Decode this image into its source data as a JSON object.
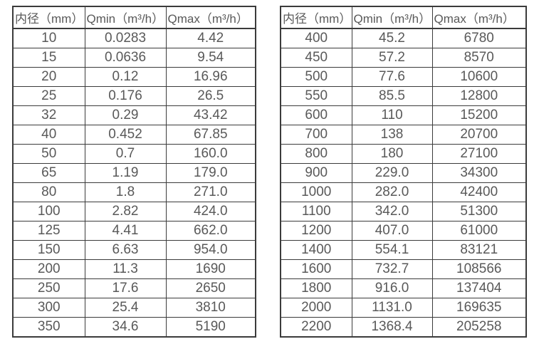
{
  "page": {
    "background": "#ffffff",
    "border_color": "#3b3b3b",
    "text_color": "#595959"
  },
  "tables": [
    {
      "name": "flow-range-table-small-diameters",
      "headers": [
        "内径（mm）",
        "Qmin（m³/h）",
        "Qmax（m³/h）"
      ],
      "rows": [
        [
          "10",
          "0.0283",
          "4.42"
        ],
        [
          "15",
          "0.0636",
          "9.54"
        ],
        [
          "20",
          "0.12",
          "16.96"
        ],
        [
          "25",
          "0.176",
          "26.5"
        ],
        [
          "32",
          "0.29",
          "43.42"
        ],
        [
          "40",
          "0.452",
          "67.85"
        ],
        [
          "50",
          "0.7",
          "160.0"
        ],
        [
          "65",
          "1.19",
          "179.0"
        ],
        [
          "80",
          "1.8",
          "271.0"
        ],
        [
          "100",
          "2.82",
          "424.0"
        ],
        [
          "125",
          "4.41",
          "662.0"
        ],
        [
          "150",
          "6.63",
          "954.0"
        ],
        [
          "200",
          "11.3",
          "1690"
        ],
        [
          "250",
          "17.6",
          "2650"
        ],
        [
          "300",
          "25.4",
          "3810"
        ],
        [
          "350",
          "34.6",
          "5190"
        ]
      ]
    },
    {
      "name": "flow-range-table-large-diameters",
      "headers": [
        "内径（mm）",
        "Qmin（m³/h）",
        "Qmax（m³/h）"
      ],
      "rows": [
        [
          "400",
          "45.2",
          "6780"
        ],
        [
          "450",
          "57.2",
          "8570"
        ],
        [
          "500",
          "77.6",
          "10600"
        ],
        [
          "550",
          "85.5",
          "12800"
        ],
        [
          "600",
          "110",
          "15200"
        ],
        [
          "700",
          "138",
          "20700"
        ],
        [
          "800",
          "180",
          "27100"
        ],
        [
          "900",
          "229.0",
          "34300"
        ],
        [
          "1000",
          "282.0",
          "42400"
        ],
        [
          "1100",
          "342.0",
          "51300"
        ],
        [
          "1200",
          "407.0",
          "61000"
        ],
        [
          "1400",
          "554.1",
          "83121"
        ],
        [
          "1600",
          "732.7",
          "108566"
        ],
        [
          "1800",
          "916.0",
          "137404"
        ],
        [
          "2000",
          "1131.0",
          "169635"
        ],
        [
          "2200",
          "1368.4",
          "205258"
        ]
      ]
    }
  ]
}
